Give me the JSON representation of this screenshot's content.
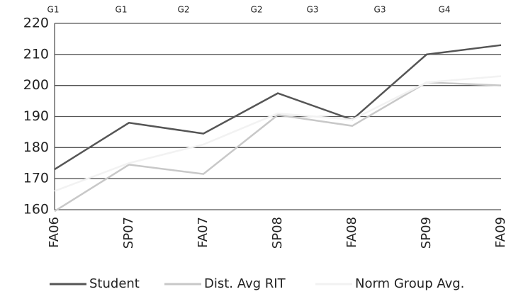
{
  "chart_data": {
    "type": "line",
    "categories": [
      "FA06",
      "SP07",
      "FA07",
      "SP08",
      "FA08",
      "SP09",
      "FA09"
    ],
    "grade_labels": [
      "G1",
      "G1",
      "G2",
      "G2",
      "G3",
      "G3",
      "G4"
    ],
    "series": [
      {
        "name": "Student",
        "color": "#555555",
        "values": [
          173,
          188,
          184.5,
          197.5,
          189,
          210,
          213
        ]
      },
      {
        "name": "Dist. Avg RIT",
        "color": "#c8c8c8",
        "values": [
          159.5,
          174.5,
          171.5,
          190.5,
          187,
          201,
          200
        ]
      },
      {
        "name": "Norm Group Avg.",
        "color": "#f2f2f2",
        "values": [
          166,
          175,
          181,
          191,
          189,
          201,
          203
        ]
      }
    ],
    "ylim": [
      160,
      220
    ],
    "yticks": [
      160,
      170,
      180,
      190,
      200,
      210,
      220
    ],
    "grid": true
  }
}
